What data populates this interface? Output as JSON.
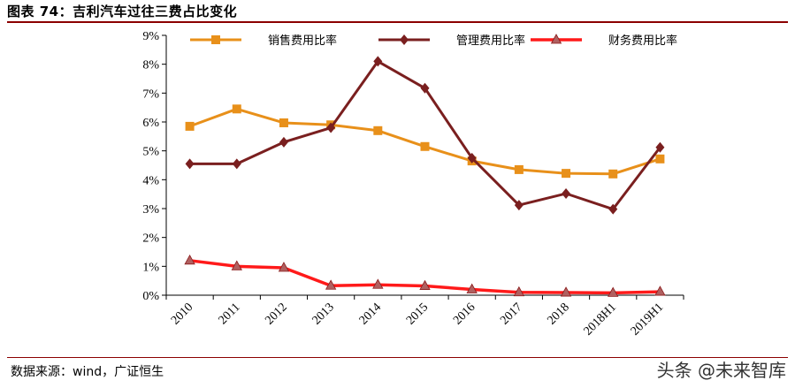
{
  "header": {
    "title": "图表 74：吉利汽车过往三费占比变化"
  },
  "footer": {
    "source": "数据来源：wind，广证恒生",
    "watermark": "头条 @未来智库"
  },
  "chart_data": {
    "type": "line",
    "title": "",
    "xlabel": "",
    "ylabel": "",
    "categories": [
      "2010",
      "2011",
      "2012",
      "2013",
      "2014",
      "2015",
      "2016",
      "2017",
      "2018",
      "2018H1",
      "2019H1"
    ],
    "ylim": [
      0,
      9
    ],
    "yticks": [
      "0%",
      "1%",
      "2%",
      "3%",
      "4%",
      "5%",
      "6%",
      "7%",
      "8%",
      "9%"
    ],
    "grid": false,
    "legend_position": "top",
    "series": [
      {
        "name": "销售费用比率",
        "color": "#E8901A",
        "marker": "square",
        "values": [
          5.85,
          6.45,
          5.97,
          5.9,
          5.7,
          5.15,
          4.65,
          4.35,
          4.22,
          4.2,
          4.72
        ]
      },
      {
        "name": "管理费用比率",
        "color": "#7A1F1F",
        "marker": "diamond",
        "values": [
          4.55,
          4.55,
          5.3,
          5.8,
          8.1,
          7.17,
          4.75,
          3.12,
          3.52,
          2.98,
          5.12
        ]
      },
      {
        "name": "财务费用比率",
        "color": "#FF1A1A",
        "marker": "triangle",
        "values": [
          1.2,
          1.0,
          0.95,
          0.33,
          0.36,
          0.32,
          0.2,
          0.1,
          0.09,
          0.08,
          0.12
        ]
      }
    ]
  }
}
